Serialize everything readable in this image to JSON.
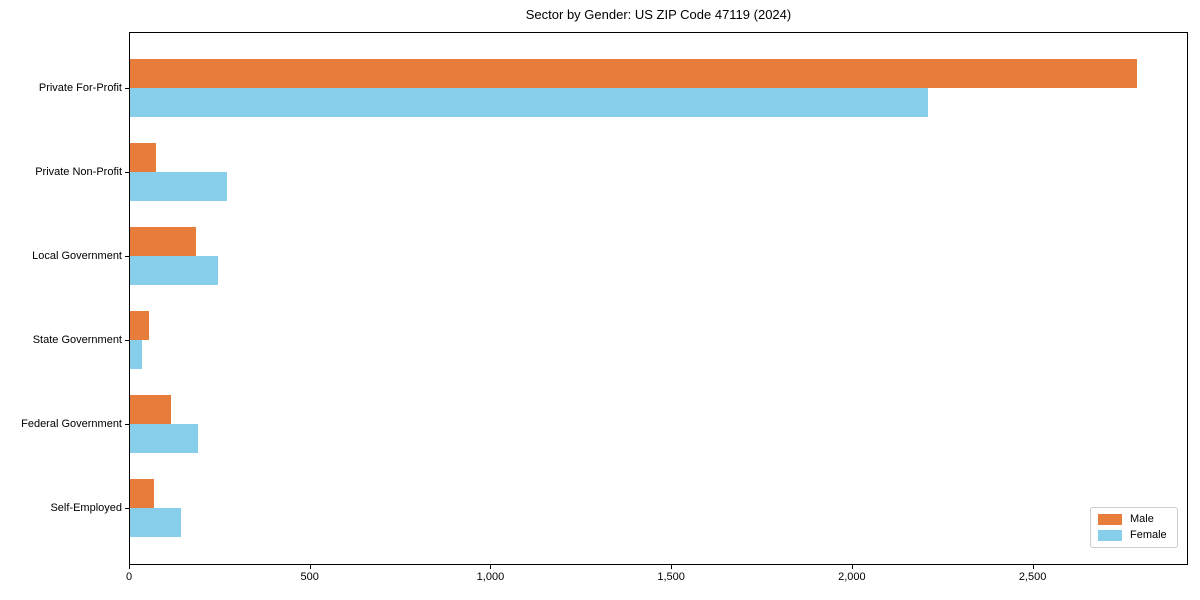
{
  "chart_data": {
    "type": "bar",
    "orientation": "horizontal",
    "title": "Sector by Gender: US ZIP Code 47119 (2024)",
    "categories": [
      "Private For-Profit",
      "Private Non-Profit",
      "Local Government",
      "State Government",
      "Federal Government",
      "Self-Employed"
    ],
    "series": [
      {
        "name": "Male",
        "color": "#E87D3B",
        "values": [
          2790,
          75,
          185,
          55,
          115,
          70
        ]
      },
      {
        "name": "Female",
        "color": "#87CEEB",
        "values": [
          2210,
          270,
          245,
          35,
          190,
          145
        ]
      }
    ],
    "xlim": [
      0,
      2930
    ],
    "xticks": [
      0,
      500,
      1000,
      1500,
      2000,
      2500
    ],
    "xtick_labels": [
      "0",
      "500",
      "1,000",
      "1,500",
      "2,000",
      "2,500"
    ],
    "grid": false,
    "legend_position": "lower right"
  }
}
